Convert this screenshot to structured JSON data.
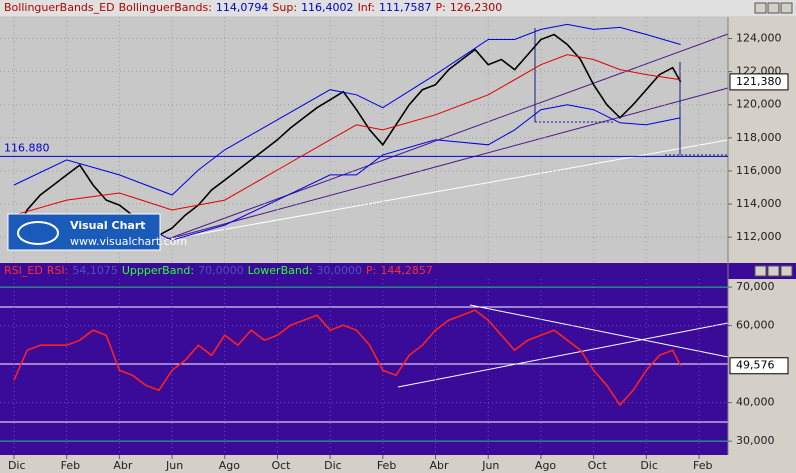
{
  "header": [
    {
      "text": "BollinguerBands_ED",
      "color": "#b00000"
    },
    {
      "text": "BollinguerBands:",
      "color": "#b00000"
    },
    {
      "text": "114,0794",
      "color": "#0000c0"
    },
    {
      "text": "Sup:",
      "color": "#b00000"
    },
    {
      "text": "116,4002",
      "color": "#0000c0"
    },
    {
      "text": "Inf:",
      "color": "#b00000"
    },
    {
      "text": "111,7587",
      "color": "#0000c0"
    },
    {
      "text": "P:",
      "color": "#b00000"
    },
    {
      "text": "126,2300",
      "color": "#b00000"
    }
  ],
  "logo": {
    "title": "Visual Chart",
    "url": "www.visualchart.com"
  },
  "chart_data": [
    {
      "type": "line",
      "xlim": [
        -0.53,
        27.1
      ],
      "ylim": [
        110500,
        125300
      ],
      "yticks": [
        {
          "value": 112000,
          "label": "112,000"
        },
        {
          "value": 114000,
          "label": "114,000"
        },
        {
          "value": 116000,
          "label": "116,000"
        },
        {
          "value": 118000,
          "label": "118,000"
        },
        {
          "value": 120000,
          "label": "120,000"
        },
        {
          "value": 122000,
          "label": "122,000"
        },
        {
          "value": 124000,
          "label": "124,000"
        }
      ],
      "reference_line": {
        "value": 116880,
        "label": "116.880",
        "color": "#0000d0"
      },
      "last_label": {
        "value": 121380,
        "label": "121,380"
      },
      "series": [
        {
          "name": "Price",
          "color": "#000000",
          "x": [
            0,
            0.5,
            1,
            1.5,
            2,
            2.5,
            3,
            3.5,
            4,
            4.5,
            5,
            5.5,
            6,
            6.5,
            7,
            7.5,
            8,
            8.5,
            9,
            9.5,
            10,
            10.5,
            11,
            11.5,
            12,
            12.5,
            13,
            13.5,
            14,
            14.5,
            15,
            15.5,
            16,
            16.5,
            17,
            17.5,
            18,
            18.5,
            19,
            19.5,
            20,
            20.5,
            21,
            21.5,
            22,
            22.5,
            23,
            23.5,
            24,
            24.5,
            25,
            25.3
          ],
          "values": [
            112100,
            113640,
            114550,
            115150,
            115760,
            116360,
            115150,
            114240,
            113940,
            113330,
            112730,
            112120,
            112550,
            113330,
            113940,
            114850,
            115450,
            116060,
            116670,
            117270,
            117880,
            118600,
            119210,
            119820,
            120300,
            120790,
            119700,
            118480,
            117580,
            118790,
            120000,
            120910,
            121210,
            122120,
            122730,
            123330,
            122420,
            122730,
            122120,
            123030,
            123940,
            124240,
            123640,
            122730,
            121210,
            120000,
            119210,
            120000,
            120910,
            121820,
            122240,
            121380
          ]
        },
        {
          "name": "Moving average",
          "color": "#e00000",
          "x": [
            0,
            2,
            4,
            6,
            8,
            10,
            12,
            13,
            14,
            16,
            18,
            20,
            21,
            22,
            23,
            24,
            25.3
          ],
          "values": [
            113330,
            114240,
            114670,
            113640,
            114240,
            116060,
            117880,
            118790,
            118480,
            119390,
            120600,
            122420,
            123030,
            122730,
            122120,
            121820,
            121510
          ]
        },
        {
          "name": "Upper band",
          "color": "#0000e0",
          "x": [
            0,
            2,
            4,
            6,
            7,
            8,
            10,
            12,
            13,
            14,
            16,
            18,
            19,
            20,
            21,
            22,
            23,
            24,
            25.3
          ],
          "values": [
            115150,
            116670,
            115760,
            114550,
            116060,
            117270,
            119090,
            120910,
            120600,
            119820,
            121820,
            123940,
            123940,
            124550,
            124850,
            124550,
            124670,
            124240,
            123640
          ]
        },
        {
          "name": "Lower band",
          "color": "#0000e0",
          "x": [
            0,
            2,
            4,
            6,
            8,
            10,
            12,
            13,
            14,
            16,
            18,
            19,
            20,
            21,
            22,
            23,
            24,
            25.3
          ],
          "values": [
            111210,
            112120,
            113330,
            111820,
            112730,
            114240,
            115760,
            115760,
            116970,
            117880,
            117580,
            118480,
            119700,
            120000,
            119700,
            118910,
            118790,
            119210
          ]
        }
      ]
    },
    {
      "type": "line",
      "header": [
        {
          "text": "RSI_ED",
          "color": "#ff3030"
        },
        {
          "text": "RSI:",
          "color": "#ff3030"
        },
        {
          "text": "54,1075",
          "color": "#5050c0"
        },
        {
          "text": "UppperBand:",
          "color": "#30ff30"
        },
        {
          "text": "70,0000",
          "color": "#5050c0"
        },
        {
          "text": "LowerBand:",
          "color": "#30ff30"
        },
        {
          "text": "30,0000",
          "color": "#5050c0"
        },
        {
          "text": "P:",
          "color": "#ff3030"
        },
        {
          "text": "144,2857",
          "color": "#ff3030"
        }
      ],
      "xlim": [
        -0.53,
        27.1
      ],
      "ylim": [
        26.4,
        72.1
      ],
      "xticks": [
        {
          "value": 0,
          "label": "Dic"
        },
        {
          "value": 2,
          "label": "Feb"
        },
        {
          "value": 4,
          "label": "Abr"
        },
        {
          "value": 6,
          "label": "Jun"
        },
        {
          "value": 8,
          "label": "Ago"
        },
        {
          "value": 10,
          "label": "Oct"
        },
        {
          "value": 12,
          "label": "Dic"
        },
        {
          "value": 14,
          "label": "Feb"
        },
        {
          "value": 16,
          "label": "Abr"
        },
        {
          "value": 18,
          "label": "Jun"
        },
        {
          "value": 20,
          "label": "Ago"
        },
        {
          "value": 22,
          "label": "Oct"
        },
        {
          "value": 24,
          "label": "Dic"
        },
        {
          "value": 26,
          "label": "Feb"
        }
      ],
      "yticks": [
        {
          "value": 30,
          "label": "30,000"
        },
        {
          "value": 40,
          "label": "40,000"
        },
        {
          "value": 60,
          "label": "60,000"
        },
        {
          "value": 70,
          "label": "70,000"
        }
      ],
      "bands": [
        70,
        30
      ],
      "last_label": {
        "value": 49.576,
        "label": "49,576"
      },
      "series": [
        {
          "name": "RSI",
          "color": "#ff2020",
          "x": [
            0,
            0.5,
            1,
            1.5,
            2,
            2.5,
            3,
            3.5,
            4,
            4.5,
            5,
            5.5,
            6,
            6.5,
            7,
            7.5,
            8,
            8.5,
            9,
            9.5,
            10,
            10.5,
            11,
            11.5,
            12,
            12.5,
            13,
            13.5,
            14,
            14.5,
            15,
            15.5,
            16,
            16.5,
            17,
            17.5,
            18,
            18.5,
            19,
            19.5,
            20,
            20.5,
            21,
            21.5,
            22,
            22.5,
            23,
            23.5,
            24,
            24.5,
            25,
            25.3
          ],
          "values": [
            45.8,
            53.6,
            54.9,
            54.9,
            54.9,
            56.2,
            58.8,
            57.5,
            48.4,
            47.1,
            44.5,
            43.2,
            48.4,
            51.0,
            54.9,
            52.3,
            57.5,
            54.9,
            58.8,
            56.2,
            57.5,
            60.1,
            61.4,
            62.7,
            58.8,
            60.1,
            58.8,
            54.9,
            48.4,
            47.1,
            52.3,
            54.9,
            58.8,
            61.4,
            62.7,
            64.0,
            61.4,
            57.5,
            53.6,
            56.2,
            57.5,
            58.8,
            56.2,
            53.6,
            48.4,
            44.5,
            39.4,
            43.2,
            48.4,
            52.3,
            53.6,
            49.576
          ]
        }
      ]
    }
  ]
}
